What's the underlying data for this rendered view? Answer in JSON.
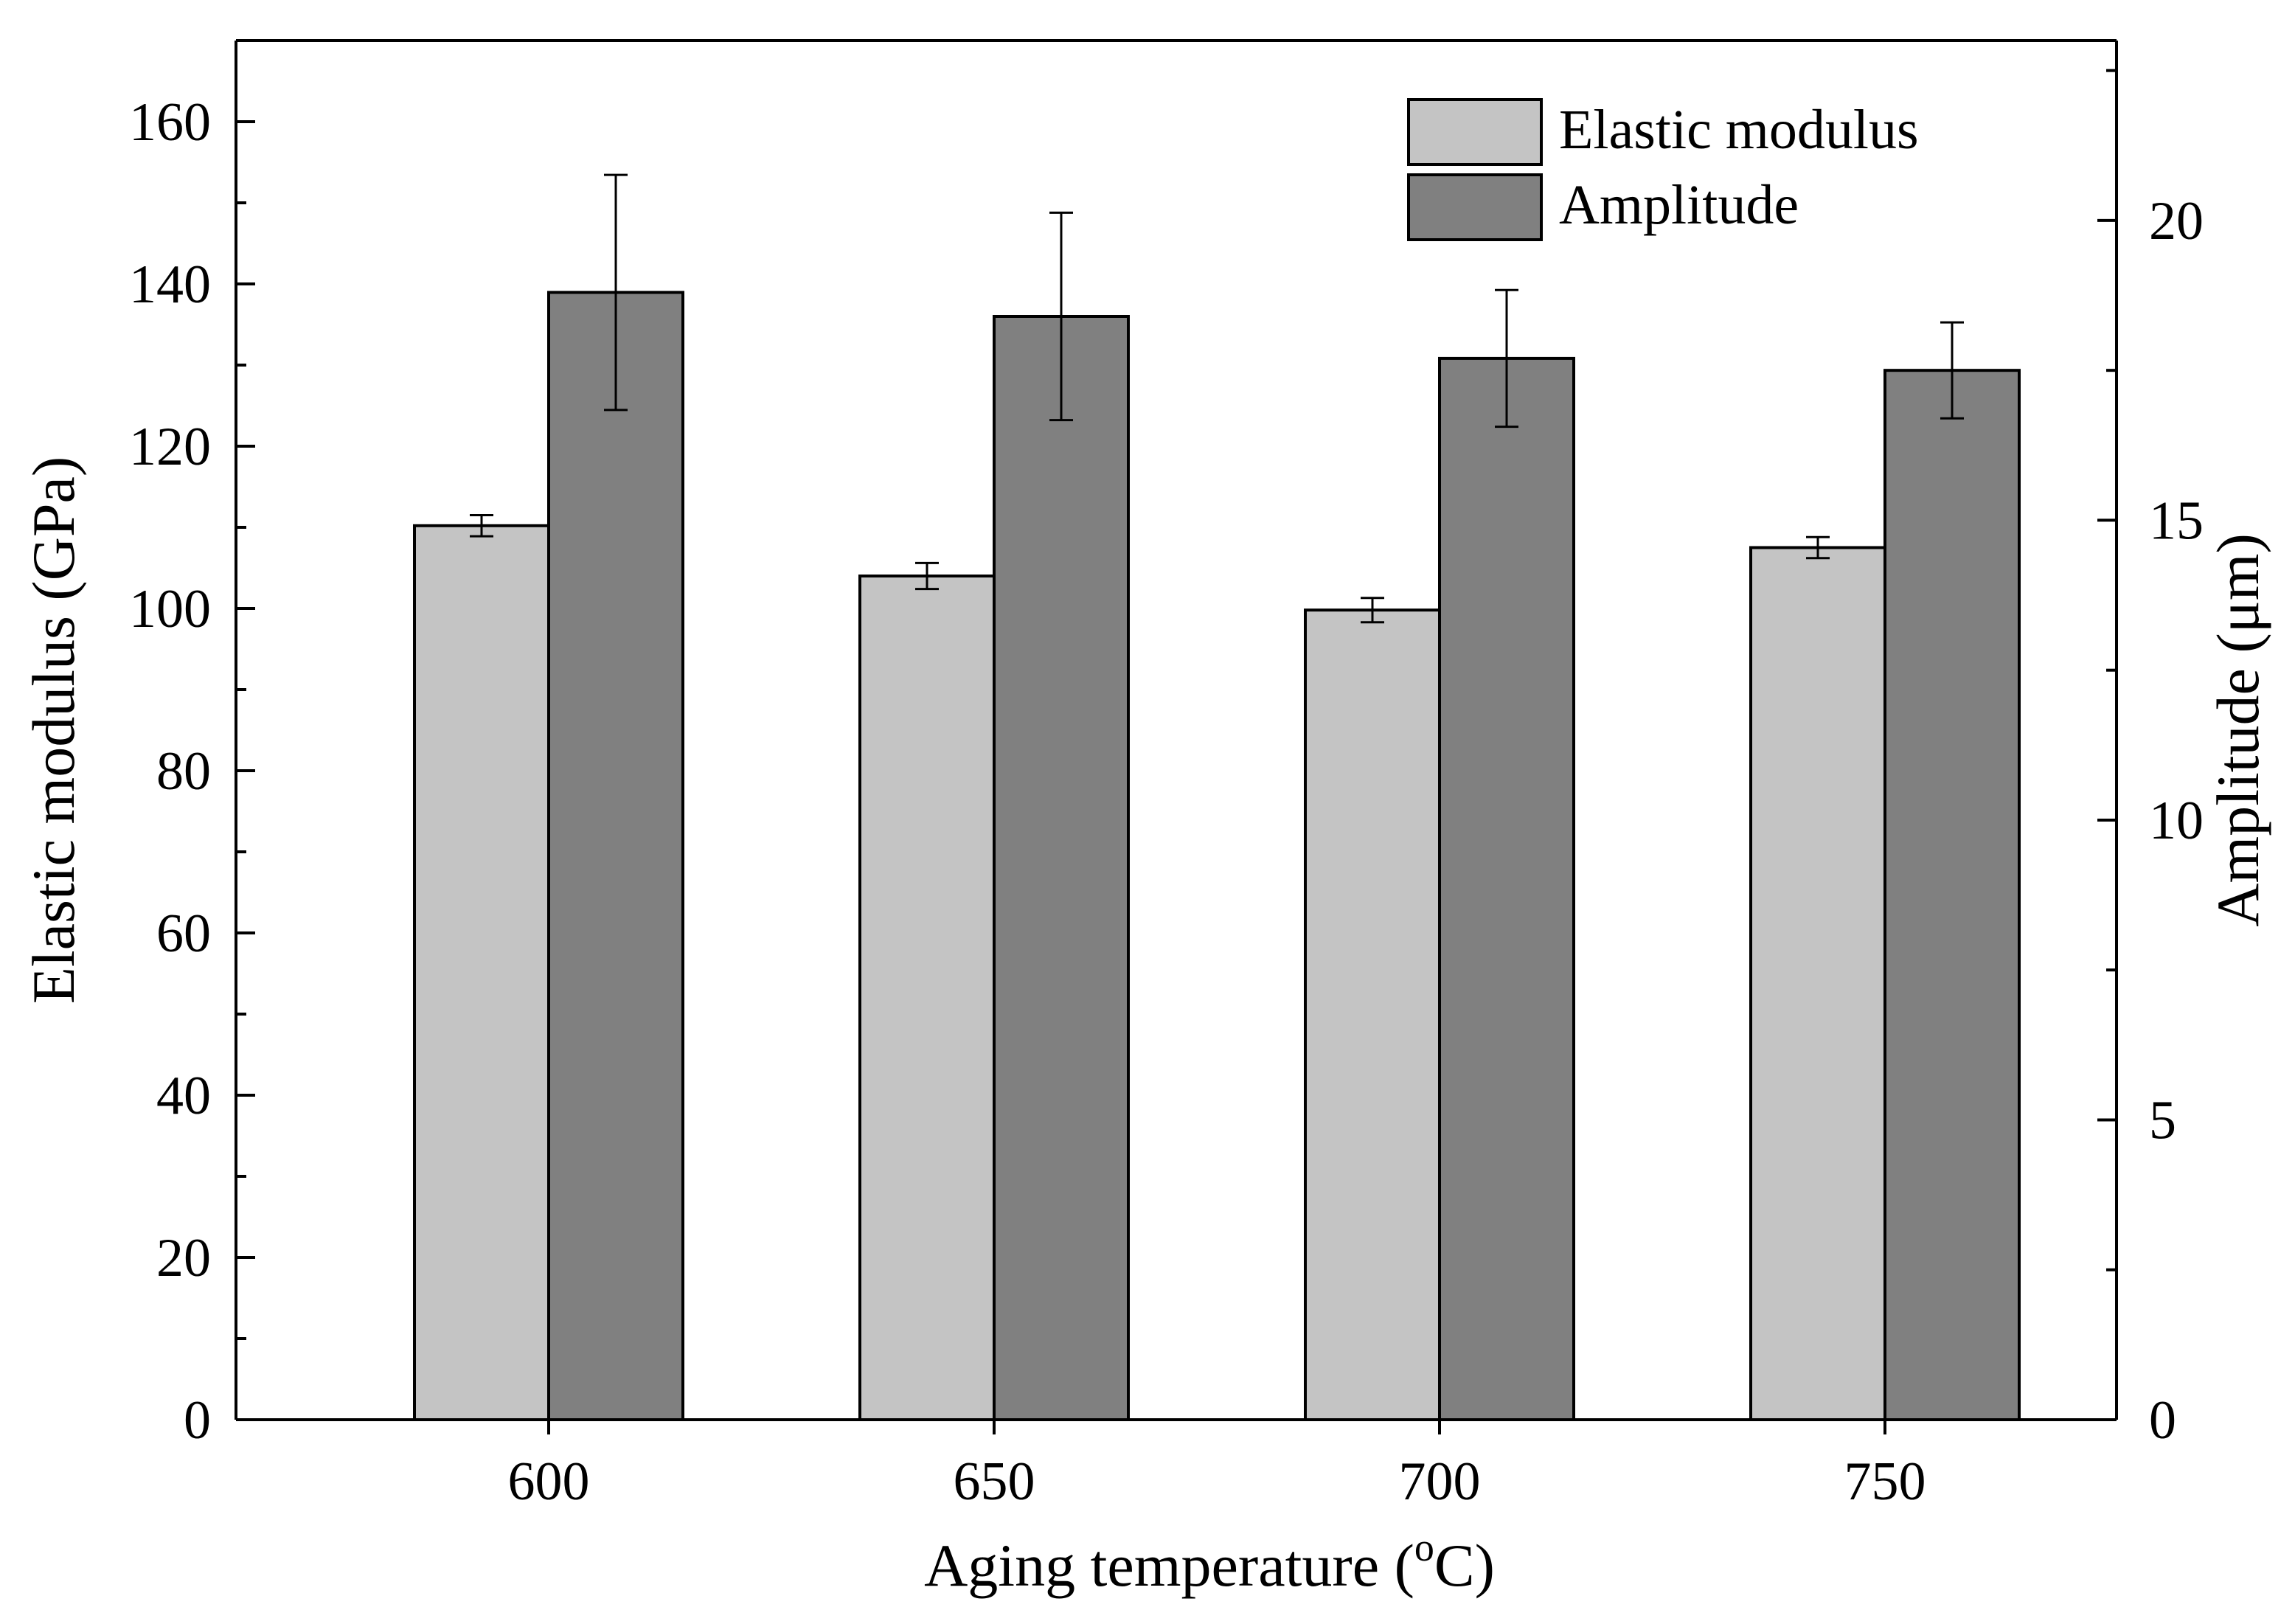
{
  "chart_data": {
    "type": "bar",
    "title": "",
    "xlabel": "Aging temperature (",
    "xlabel_sup": "o",
    "xlabel_unit": "C)",
    "ylabel": "Elastic modulus (GPa)",
    "y2label": "Amplitude (μm)",
    "categories": [
      "600",
      "650",
      "700",
      "750"
    ],
    "ylim": [
      0,
      170
    ],
    "y2lim": [
      0,
      23
    ],
    "yticks": [
      "0",
      "20",
      "40",
      "60",
      "80",
      "100",
      "120",
      "140",
      "160"
    ],
    "y2ticks": [
      "0",
      "5",
      "10",
      "15",
      "20"
    ],
    "ytick_values": [
      0,
      20,
      40,
      60,
      80,
      100,
      120,
      140,
      160
    ],
    "y2tick_values": [
      0,
      5,
      10,
      15,
      20
    ],
    "legend_position": "top-right",
    "series": [
      {
        "name": "Elastic modulus",
        "axis": "left",
        "color": "#c4c4c4",
        "values": [
          110.2,
          104.0,
          99.8,
          107.5
        ],
        "errors": [
          1.3,
          1.6,
          1.5,
          1.3
        ]
      },
      {
        "name": "Amplitude",
        "axis": "right",
        "color": "#808080",
        "values": [
          18.8,
          18.4,
          17.7,
          17.5
        ],
        "errors": [
          1.96,
          1.73,
          1.14,
          0.8
        ]
      }
    ]
  }
}
